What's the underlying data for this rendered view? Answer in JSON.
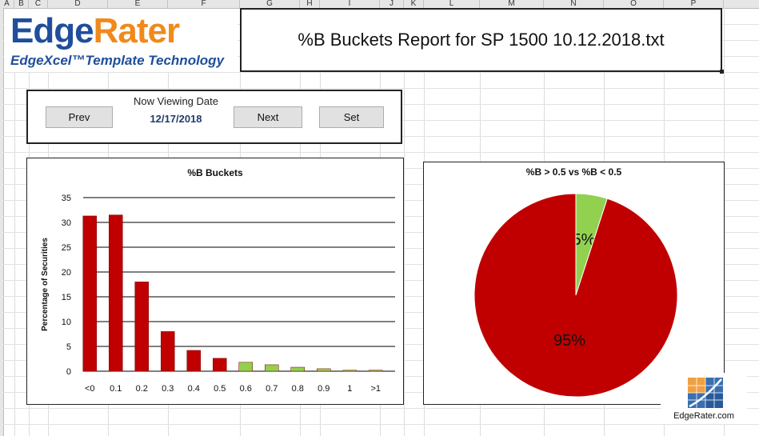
{
  "spreadsheet": {
    "columns": [
      "A",
      "B",
      "C",
      "D",
      "E",
      "F",
      "G",
      "H",
      "I",
      "J",
      "K",
      "L",
      "M",
      "N",
      "O",
      "P"
    ]
  },
  "logo": {
    "name_part1": "Edge",
    "name_part2": "Rater",
    "tagline": "EdgeXcel™Template Technology",
    "brand_blue": "#1f4e9c",
    "brand_orange": "#f08a1c"
  },
  "report": {
    "title": "%B Buckets Report for SP 1500 10.12.2018.txt"
  },
  "date_panel": {
    "label": "Now Viewing Date",
    "date": "12/17/2018",
    "prev_label": "Prev",
    "next_label": "Next",
    "set_label": "Set"
  },
  "badge": {
    "text": "EdgeRater.com"
  },
  "chart_data": [
    {
      "type": "bar",
      "title": "%B Buckets",
      "ylabel": "Percentage of Securities",
      "xlabel": "",
      "categories": [
        "<0",
        "0.1",
        "0.2",
        "0.3",
        "0.4",
        "0.5",
        "0.6",
        "0.7",
        "0.8",
        "0.9",
        "1",
        ">1"
      ],
      "values": [
        31.3,
        31.5,
        18.0,
        8.0,
        4.2,
        2.6,
        1.8,
        1.3,
        0.8,
        0.5,
        0.2,
        0.2
      ],
      "colors": [
        "#c00000",
        "#c00000",
        "#c00000",
        "#c00000",
        "#c00000",
        "#c00000",
        "#92d050",
        "#92d050",
        "#92d050",
        "#92d050",
        "#92d050",
        "#92d050"
      ],
      "ylim": [
        0,
        35
      ],
      "yticks": [
        0,
        5,
        10,
        15,
        20,
        25,
        30,
        35
      ],
      "grid": true
    },
    {
      "type": "pie",
      "title": "%B > 0.5 vs %B < 0.5",
      "slices": [
        {
          "label": "5%",
          "value": 5,
          "color": "#92d050"
        },
        {
          "label": "95%",
          "value": 95,
          "color": "#c00000"
        }
      ]
    }
  ]
}
